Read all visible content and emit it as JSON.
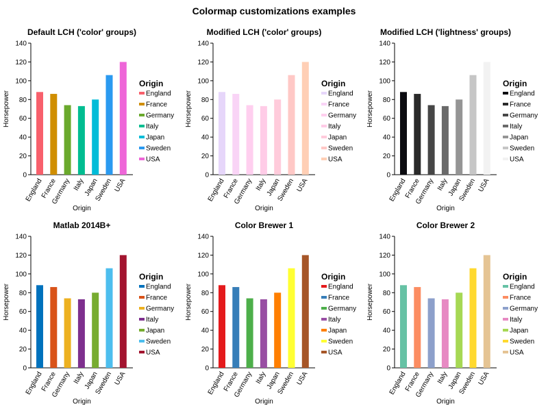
{
  "figure_title": "Colormap customizations examples",
  "chart_data": [
    {
      "type": "bar",
      "title": "Default LCH ('color' groups)",
      "xlabel": "Origin",
      "ylabel": "Horsepower",
      "ylim": [
        0,
        140
      ],
      "yticks": [
        0,
        20,
        40,
        60,
        80,
        100,
        120,
        140
      ],
      "categories": [
        "England",
        "France",
        "Germany",
        "Italy",
        "Japan",
        "Sweden",
        "USA"
      ],
      "values": [
        88,
        86,
        74,
        73,
        80,
        106,
        120
      ],
      "colors": [
        "#F8606C",
        "#D08E00",
        "#6AA92C",
        "#00BD91",
        "#00BCD8",
        "#2B9AF0",
        "#EE66D8"
      ],
      "legend": {
        "title": "Origin",
        "position": "right"
      }
    },
    {
      "type": "bar",
      "title": "Modified LCH ('color' groups)",
      "xlabel": "Origin",
      "ylabel": "Horsepower",
      "ylim": [
        0,
        140
      ],
      "yticks": [
        0,
        20,
        40,
        60,
        80,
        100,
        120,
        140
      ],
      "categories": [
        "England",
        "France",
        "Germany",
        "Italy",
        "Japan",
        "Sweden",
        "USA"
      ],
      "values": [
        88,
        86,
        74,
        73,
        80,
        106,
        120
      ],
      "colors": [
        "#E6D6FA",
        "#F9D4F6",
        "#FFCFEF",
        "#FFCCE7",
        "#FFCBDB",
        "#FFC8C6",
        "#FFCFB5"
      ],
      "legend": {
        "title": "Origin",
        "position": "right"
      }
    },
    {
      "type": "bar",
      "title": "Modified LCH ('lightness' groups)",
      "xlabel": "Origin",
      "ylabel": "Horsepower",
      "ylim": [
        0,
        140
      ],
      "yticks": [
        0,
        20,
        40,
        60,
        80,
        100,
        120,
        140
      ],
      "categories": [
        "England",
        "France",
        "Germany",
        "Italy",
        "Japan",
        "Sweden",
        "USA"
      ],
      "values": [
        88,
        86,
        74,
        73,
        80,
        106,
        120
      ],
      "colors": [
        "#0B0B10",
        "#2A2A2A",
        "#464646",
        "#6A6A6A",
        "#959595",
        "#C6C6C6",
        "#F2F2F2"
      ],
      "legend": {
        "title": "Origin",
        "position": "right"
      }
    },
    {
      "type": "bar",
      "title": "Matlab 2014B+",
      "xlabel": "Origin",
      "ylabel": "Horsepower",
      "ylim": [
        0,
        140
      ],
      "yticks": [
        0,
        20,
        40,
        60,
        80,
        100,
        120,
        140
      ],
      "categories": [
        "England",
        "France",
        "Germany",
        "Italy",
        "Japan",
        "Sweden",
        "USA"
      ],
      "values": [
        88,
        86,
        74,
        73,
        80,
        106,
        120
      ],
      "colors": [
        "#0072BD",
        "#D95319",
        "#EDB120",
        "#7E2F8E",
        "#77AC30",
        "#4DBEEE",
        "#A2142F"
      ],
      "legend": {
        "title": "Origin",
        "position": "right"
      }
    },
    {
      "type": "bar",
      "title": "Color Brewer 1",
      "xlabel": "Origin",
      "ylabel": "Horsepower",
      "ylim": [
        0,
        140
      ],
      "yticks": [
        0,
        20,
        40,
        60,
        80,
        100,
        120,
        140
      ],
      "categories": [
        "England",
        "France",
        "Germany",
        "Italy",
        "Japan",
        "Sweden",
        "USA"
      ],
      "values": [
        88,
        86,
        74,
        73,
        80,
        106,
        120
      ],
      "colors": [
        "#E41A1C",
        "#377EB8",
        "#4DAF4A",
        "#984EA3",
        "#FF7F00",
        "#FFFF33",
        "#A65628"
      ],
      "legend": {
        "title": "Origin",
        "position": "right"
      }
    },
    {
      "type": "bar",
      "title": "Color Brewer 2",
      "xlabel": "Origin",
      "ylabel": "Horsepower",
      "ylim": [
        0,
        140
      ],
      "yticks": [
        0,
        20,
        40,
        60,
        80,
        100,
        120,
        140
      ],
      "categories": [
        "England",
        "France",
        "Germany",
        "Italy",
        "Japan",
        "Sweden",
        "USA"
      ],
      "values": [
        88,
        86,
        74,
        73,
        80,
        106,
        120
      ],
      "colors": [
        "#66C2A5",
        "#FC8D62",
        "#8DA0CB",
        "#E78AC3",
        "#A6D854",
        "#FFD92F",
        "#E5C494"
      ],
      "legend": {
        "title": "Origin",
        "position": "right"
      }
    }
  ]
}
